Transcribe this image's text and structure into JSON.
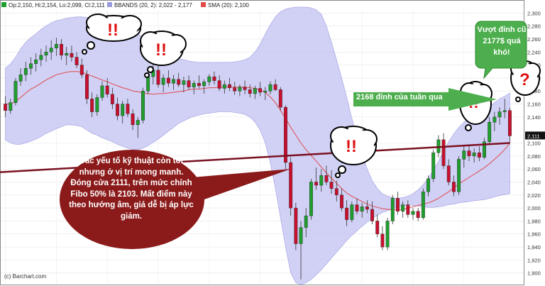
{
  "header": {
    "ohlc": "Op:2,150, Hi:2,154, Lo:2,099, Cl:2,111",
    "bbands": "BBANDS (20, 2): 2,022 - 2,177",
    "sma": "SMA (20): 2,100"
  },
  "credit": "(c) Barchart.com",
  "annotations": {
    "main": "Các yếu tố kỹ thuật còn tốt nhưng ở vị trí mong manh. Đóng cửa 2111, trên mức chính Fibo 50% là 2103. Mất điểm này theo hướng âm, giá dễ bị áp lực giảm.",
    "right": "Vượt đỉnh cũ 2177$ quá khó!",
    "arrow": "2168 đỉnh của tuần qua",
    "alarm": "!!",
    "question": "?"
  },
  "colors": {
    "up": "#1f9e2e",
    "down": "#c8102e",
    "band_fill": "#c9c9f5",
    "sma": "#e04a4a",
    "trendline": "#7a1020",
    "callout": "#8b1a1a",
    "green_callout": "#4cae4c"
  },
  "chart_data": {
    "type": "candlestick",
    "ylim": [
      1880,
      2320
    ],
    "y_ticks": [
      1900,
      1920,
      1940,
      1960,
      1980,
      2000,
      2020,
      2040,
      2060,
      2080,
      2100,
      2140,
      2160,
      2180,
      2200,
      2220,
      2240,
      2260,
      2280,
      2300
    ],
    "y_tick_labels": [
      "1,900",
      "1,920",
      "1,940",
      "1,960",
      "1,980",
      "2,000",
      "2,020",
      "2,040",
      "2,060",
      "2,080",
      "2,100",
      "2,140",
      "2,160",
      "2,180",
      "2,200",
      "2,220",
      "2,240",
      "2,260",
      "2,280",
      "2,300"
    ],
    "last_price_label": "2,111",
    "series": [
      {
        "name": "Price",
        "ohlc": [
          [
            2160,
            2172,
            2140,
            2150
          ],
          [
            2150,
            2168,
            2145,
            2162
          ],
          [
            2162,
            2200,
            2158,
            2195
          ],
          [
            2195,
            2215,
            2188,
            2205
          ],
          [
            2205,
            2225,
            2195,
            2215
          ],
          [
            2215,
            2232,
            2205,
            2222
          ],
          [
            2222,
            2238,
            2210,
            2228
          ],
          [
            2228,
            2245,
            2218,
            2235
          ],
          [
            2235,
            2250,
            2225,
            2240
          ],
          [
            2240,
            2258,
            2228,
            2246
          ],
          [
            2246,
            2262,
            2234,
            2252
          ],
          [
            2252,
            2260,
            2228,
            2235
          ],
          [
            2235,
            2248,
            2220,
            2238
          ],
          [
            2238,
            2250,
            2225,
            2232
          ],
          [
            2232,
            2240,
            2215,
            2220
          ],
          [
            2220,
            2230,
            2200,
            2205
          ],
          [
            2205,
            2212,
            2160,
            2168
          ],
          [
            2168,
            2178,
            2140,
            2148
          ],
          [
            2148,
            2175,
            2142,
            2170
          ],
          [
            2170,
            2195,
            2165,
            2188
          ],
          [
            2188,
            2200,
            2170,
            2175
          ],
          [
            2175,
            2185,
            2152,
            2160
          ],
          [
            2160,
            2170,
            2135,
            2142
          ],
          [
            2142,
            2165,
            2130,
            2160
          ],
          [
            2160,
            2168,
            2140,
            2145
          ],
          [
            2145,
            2152,
            2120,
            2128
          ],
          [
            2128,
            2140,
            2108,
            2135
          ],
          [
            2135,
            2185,
            2130,
            2180
          ],
          [
            2180,
            2210,
            2175,
            2202
          ],
          [
            2202,
            2222,
            2190,
            2212
          ],
          [
            2212,
            2220,
            2185,
            2190
          ],
          [
            2190,
            2206,
            2178,
            2200
          ],
          [
            2200,
            2212,
            2186,
            2192
          ],
          [
            2192,
            2205,
            2182,
            2198
          ],
          [
            2198,
            2208,
            2186,
            2190
          ],
          [
            2190,
            2202,
            2178,
            2196
          ],
          [
            2196,
            2204,
            2182,
            2186
          ],
          [
            2186,
            2196,
            2175,
            2192
          ],
          [
            2192,
            2204,
            2184,
            2188
          ],
          [
            2188,
            2198,
            2176,
            2194
          ],
          [
            2194,
            2206,
            2188,
            2202
          ],
          [
            2202,
            2210,
            2190,
            2196
          ],
          [
            2196,
            2204,
            2180,
            2184
          ],
          [
            2184,
            2196,
            2176,
            2190
          ],
          [
            2190,
            2200,
            2180,
            2185
          ],
          [
            2185,
            2194,
            2174,
            2180
          ],
          [
            2180,
            2190,
            2172,
            2186
          ],
          [
            2186,
            2196,
            2175,
            2182
          ],
          [
            2182,
            2190,
            2170,
            2176
          ],
          [
            2176,
            2188,
            2168,
            2184
          ],
          [
            2184,
            2194,
            2172,
            2178
          ],
          [
            2178,
            2186,
            2166,
            2180
          ],
          [
            2180,
            2195,
            2175,
            2190
          ],
          [
            2190,
            2198,
            2180,
            2182
          ],
          [
            2182,
            2186,
            2150,
            2155
          ],
          [
            2155,
            2158,
            2060,
            2070
          ],
          [
            2070,
            2078,
            1988,
            2000
          ],
          [
            2000,
            2008,
            1935,
            1945
          ],
          [
            1945,
            1980,
            1890,
            1970
          ],
          [
            1970,
            2000,
            1955,
            1988
          ],
          [
            1988,
            2045,
            1982,
            2040
          ],
          [
            2040,
            2062,
            2028,
            2035
          ],
          [
            2035,
            2060,
            2025,
            2050
          ],
          [
            2050,
            2065,
            2035,
            2040
          ],
          [
            2040,
            2058,
            2022,
            2030
          ],
          [
            2030,
            2042,
            2010,
            2020
          ],
          [
            2020,
            2030,
            1995,
            2000
          ],
          [
            2000,
            2012,
            1972,
            1982
          ],
          [
            1982,
            2010,
            1978,
            2005
          ],
          [
            2005,
            2015,
            1990,
            1995
          ],
          [
            1995,
            2008,
            1985,
            2002
          ],
          [
            2002,
            2012,
            1992,
            1998
          ],
          [
            1998,
            2010,
            1975,
            1980
          ],
          [
            1980,
            1990,
            1955,
            1960
          ],
          [
            1960,
            1972,
            1935,
            1940
          ],
          [
            1940,
            1985,
            1935,
            1980
          ],
          [
            1980,
            2020,
            1975,
            2015
          ],
          [
            2015,
            2025,
            1990,
            1995
          ],
          [
            1995,
            2010,
            1985,
            2005
          ],
          [
            2005,
            2012,
            1985,
            1990
          ],
          [
            1990,
            2000,
            1982,
            1995
          ],
          [
            1995,
            2000,
            1980,
            1985
          ],
          [
            1985,
            2030,
            1982,
            2025
          ],
          [
            2025,
            2050,
            2018,
            2045
          ],
          [
            2045,
            2090,
            2040,
            2085
          ],
          [
            2085,
            2112,
            2078,
            2105
          ],
          [
            2105,
            2115,
            2060,
            2065
          ],
          [
            2065,
            2075,
            2035,
            2040
          ],
          [
            2040,
            2050,
            2018,
            2025
          ],
          [
            2025,
            2080,
            2020,
            2075
          ],
          [
            2075,
            2095,
            2062,
            2088
          ],
          [
            2088,
            2098,
            2072,
            2080
          ],
          [
            2080,
            2092,
            2070,
            2085
          ],
          [
            2085,
            2095,
            2072,
            2078
          ],
          [
            2078,
            2108,
            2075,
            2102
          ],
          [
            2102,
            2140,
            2098,
            2132
          ],
          [
            2132,
            2148,
            2118,
            2140
          ],
          [
            2140,
            2155,
            2128,
            2148
          ],
          [
            2148,
            2168,
            2138,
            2150
          ],
          [
            2150,
            2154,
            2099,
            2111
          ]
        ]
      },
      {
        "name": "BBANDS (20, 2)",
        "upper": [
          2215,
          2222,
          2232,
          2245,
          2255,
          2262,
          2268,
          2275,
          2280,
          2285,
          2288,
          2290,
          2292,
          2293,
          2294,
          2294,
          2293,
          2292,
          2290,
          2288,
          2285,
          2282,
          2280,
          2277,
          2275,
          2272,
          2268,
          2262,
          2255,
          2250,
          2246,
          2242,
          2238,
          2234,
          2230,
          2228,
          2226,
          2225,
          2224,
          2224,
          2224,
          2224,
          2224,
          2224,
          2224,
          2225,
          2226,
          2228,
          2232,
          2240,
          2252,
          2268,
          2282,
          2294,
          2302,
          2306,
          2308,
          2309,
          2309,
          2309,
          2308,
          2305,
          2298,
          2280,
          2255,
          2228,
          2200,
          2170,
          2138,
          2110,
          2082,
          2060,
          2042,
          2030,
          2022,
          2018,
          2016,
          2015,
          2016,
          2018,
          2022,
          2028,
          2036,
          2046,
          2058,
          2072,
          2088,
          2102,
          2114,
          2124,
          2132,
          2138,
          2143,
          2148,
          2152,
          2156,
          2162,
          2168,
          2172,
          2177
        ],
        "lower": [
          2105,
          2100,
          2098,
          2098,
          2100,
          2103,
          2106,
          2110,
          2115,
          2118,
          2122,
          2125,
          2128,
          2128,
          2127,
          2125,
          2120,
          2115,
          2112,
          2108,
          2105,
          2102,
          2098,
          2095,
          2092,
          2090,
          2090,
          2092,
          2096,
          2101,
          2106,
          2112,
          2118,
          2124,
          2130,
          2134,
          2138,
          2141,
          2143,
          2145,
          2146,
          2147,
          2148,
          2148,
          2148,
          2147,
          2146,
          2144,
          2140,
          2132,
          2120,
          2100,
          2070,
          2030,
          1985,
          1940,
          1900,
          1885,
          1882,
          1885,
          1890,
          1897,
          1905,
          1914,
          1923,
          1932,
          1941,
          1950,
          1958,
          1965,
          1972,
          1978,
          1984,
          1989,
          1993,
          1996,
          1999,
          2001,
          2003,
          2005,
          2004,
          2003,
          2002,
          2001,
          2001,
          2002,
          2003,
          2005,
          2006,
          2008,
          2009,
          2010,
          2011,
          2012,
          2013,
          2015,
          2017,
          2019,
          2021,
          2022
        ]
      },
      {
        "name": "SMA (20)",
        "values": [
          2160,
          2160,
          2164,
          2170,
          2177,
          2183,
          2187,
          2192,
          2197,
          2201,
          2205,
          2207,
          2209,
          2210,
          2210,
          2209,
          2206,
          2203,
          2200,
          2197,
          2194,
          2191,
          2188,
          2185,
          2183,
          2180,
          2179,
          2177,
          2176,
          2175,
          2176,
          2176,
          2177,
          2178,
          2179,
          2180,
          2182,
          2183,
          2183,
          2184,
          2185,
          2185,
          2186,
          2186,
          2186,
          2186,
          2186,
          2186,
          2185,
          2184,
          2182,
          2178,
          2171,
          2162,
          2150,
          2138,
          2124,
          2112,
          2100,
          2090,
          2081,
          2072,
          2063,
          2054,
          2046,
          2038,
          2030,
          2023,
          2018,
          2014,
          2010,
          2006,
          2003,
          2001,
          1999,
          1998,
          1997,
          1997,
          1998,
          2000,
          2002,
          2004,
          2006,
          2008,
          2011,
          2015,
          2020,
          2025,
          2031,
          2037,
          2042,
          2047,
          2052,
          2057,
          2062,
          2068,
          2075,
          2082,
          2090,
          2100
        ]
      }
    ],
    "trendline": [
      [
        0,
        2055
      ],
      [
        99,
        2100
      ]
    ]
  }
}
